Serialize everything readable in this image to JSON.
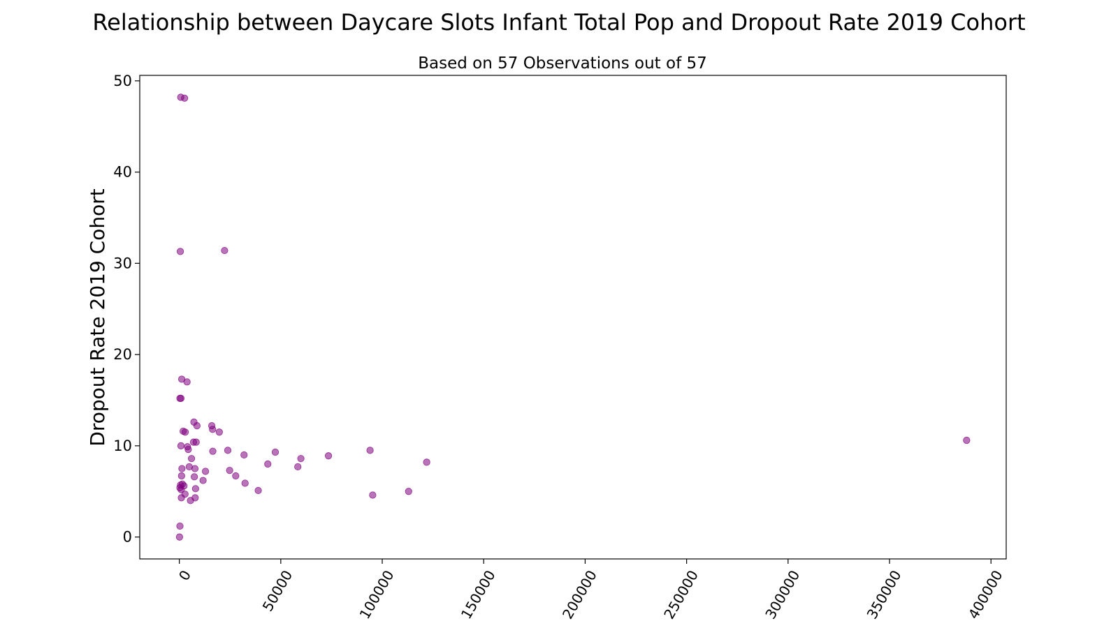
{
  "chart_data": {
    "type": "scatter",
    "title": "Relationship between Daycare Slots Infant Total Pop and Dropout Rate 2019 Cohort",
    "subtitle": "Based on 57 Observations out of 57",
    "xlabel": "",
    "ylabel": "Dropout Rate 2019 Cohort",
    "xlim": [
      -19500,
      407500
    ],
    "ylim": [
      -2.4,
      50.6
    ],
    "xticks": [
      0,
      50000,
      100000,
      150000,
      200000,
      250000,
      300000,
      350000,
      400000
    ],
    "xtick_labels": [
      "0",
      "50000",
      "100000",
      "150000",
      "200000",
      "250000",
      "300000",
      "350000",
      "400000"
    ],
    "yticks": [
      0,
      10,
      20,
      30,
      40,
      50
    ],
    "ytick_labels": [
      "0",
      "10",
      "20",
      "30",
      "40",
      "50"
    ],
    "grid": false,
    "marker_color": "#800080",
    "marker_opacity": 0.55,
    "points": [
      {
        "x": 700,
        "y": 48.2
      },
      {
        "x": 2600,
        "y": 48.1
      },
      {
        "x": 500,
        "y": 31.3
      },
      {
        "x": 22300,
        "y": 31.4
      },
      {
        "x": 1200,
        "y": 17.3
      },
      {
        "x": 3800,
        "y": 17.0
      },
      {
        "x": 300,
        "y": 15.2
      },
      {
        "x": 800,
        "y": 15.2
      },
      {
        "x": 7200,
        "y": 12.6
      },
      {
        "x": 8700,
        "y": 12.2
      },
      {
        "x": 1900,
        "y": 11.6
      },
      {
        "x": 2900,
        "y": 11.5
      },
      {
        "x": 16000,
        "y": 12.2
      },
      {
        "x": 16400,
        "y": 11.8
      },
      {
        "x": 19700,
        "y": 11.5
      },
      {
        "x": 7000,
        "y": 10.4
      },
      {
        "x": 8300,
        "y": 10.4
      },
      {
        "x": 800,
        "y": 10.0
      },
      {
        "x": 4000,
        "y": 9.9
      },
      {
        "x": 4400,
        "y": 9.6
      },
      {
        "x": 16500,
        "y": 9.4
      },
      {
        "x": 23900,
        "y": 9.5
      },
      {
        "x": 31900,
        "y": 9.0
      },
      {
        "x": 47300,
        "y": 9.3
      },
      {
        "x": 59900,
        "y": 8.6
      },
      {
        "x": 73500,
        "y": 8.9
      },
      {
        "x": 94000,
        "y": 9.5
      },
      {
        "x": 121900,
        "y": 8.2
      },
      {
        "x": 388000,
        "y": 10.6
      },
      {
        "x": 6000,
        "y": 8.6
      },
      {
        "x": 43600,
        "y": 8.0
      },
      {
        "x": 58400,
        "y": 7.7
      },
      {
        "x": 1300,
        "y": 7.5
      },
      {
        "x": 4900,
        "y": 7.7
      },
      {
        "x": 7700,
        "y": 7.5
      },
      {
        "x": 12900,
        "y": 7.2
      },
      {
        "x": 24800,
        "y": 7.3
      },
      {
        "x": 1100,
        "y": 6.7
      },
      {
        "x": 7400,
        "y": 6.6
      },
      {
        "x": 27800,
        "y": 6.7
      },
      {
        "x": 11700,
        "y": 6.2
      },
      {
        "x": 32400,
        "y": 5.9
      },
      {
        "x": 300,
        "y": 5.4
      },
      {
        "x": 600,
        "y": 5.7
      },
      {
        "x": 900,
        "y": 5.2
      },
      {
        "x": 1500,
        "y": 5.8
      },
      {
        "x": 2300,
        "y": 5.6
      },
      {
        "x": 8000,
        "y": 5.3
      },
      {
        "x": 38900,
        "y": 5.1
      },
      {
        "x": 113000,
        "y": 5.0
      },
      {
        "x": 2800,
        "y": 4.7
      },
      {
        "x": 95300,
        "y": 4.6
      },
      {
        "x": 1000,
        "y": 4.3
      },
      {
        "x": 5500,
        "y": 4.0
      },
      {
        "x": 7800,
        "y": 4.3
      },
      {
        "x": 300,
        "y": 1.2
      },
      {
        "x": 100,
        "y": 0.0
      }
    ]
  }
}
